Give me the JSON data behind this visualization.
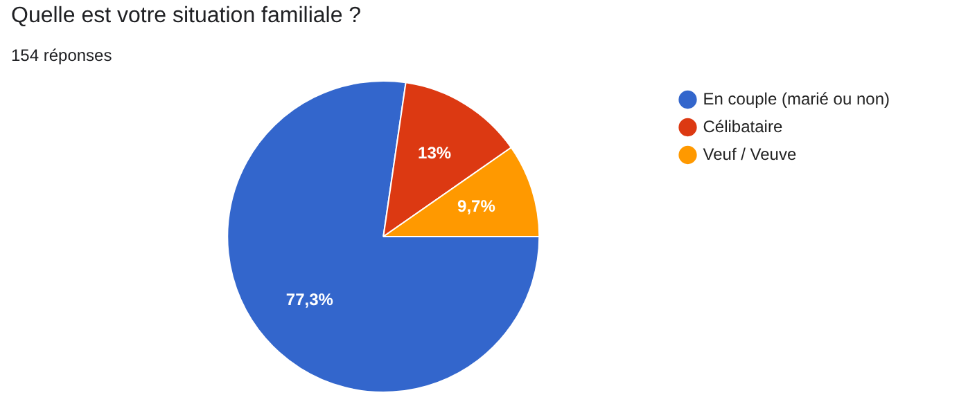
{
  "chart_data": {
    "type": "pie",
    "title": "Quelle est votre situation familiale ?",
    "subtitle": "154 réponses",
    "categories": [
      "En couple (marié ou non)",
      "Célibataire",
      "Veuf / Veuve"
    ],
    "values": [
      77.3,
      13,
      9.7
    ],
    "colors": [
      "#3366cc",
      "#dc3912",
      "#ff9900"
    ],
    "value_labels": [
      "77,3%",
      "13%",
      "9,7%"
    ],
    "legend": "right"
  }
}
